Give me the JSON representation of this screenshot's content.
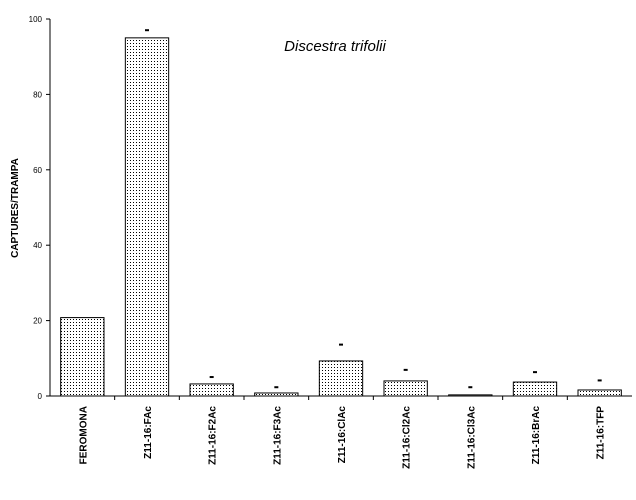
{
  "chart_data": {
    "type": "bar",
    "title": "Discestra trifolii",
    "xlabel": "",
    "ylabel": "CAPTURES/TRAMPA",
    "ylim": [
      0,
      100
    ],
    "yticks": [
      0,
      20,
      40,
      60,
      80,
      100
    ],
    "grid": false,
    "legend": "none",
    "categories": [
      "FEROMONA",
      "Z11-16:FAc",
      "Z11-16:F2Ac",
      "Z11-16:F3Ac",
      "Z11-16:ClAc",
      "Z11-16:Cl2Ac",
      "Z11-16:Cl3Ac",
      "Z11-16:BrAc",
      "Z11-16:TFP"
    ],
    "values": [
      20.8,
      95,
      3.2,
      0.8,
      9.3,
      4.0,
      0.3,
      3.7,
      1.6
    ],
    "error_bars": [
      null,
      1.5,
      1.3,
      1.0,
      3.8,
      2.4,
      1.5,
      2.1,
      2.0
    ],
    "bar_fill": "dotted",
    "colors": {
      "bar_fill": "#ffffff",
      "bar_dots": "#000000",
      "axis": "#000000",
      "background": "#ffffff"
    }
  }
}
